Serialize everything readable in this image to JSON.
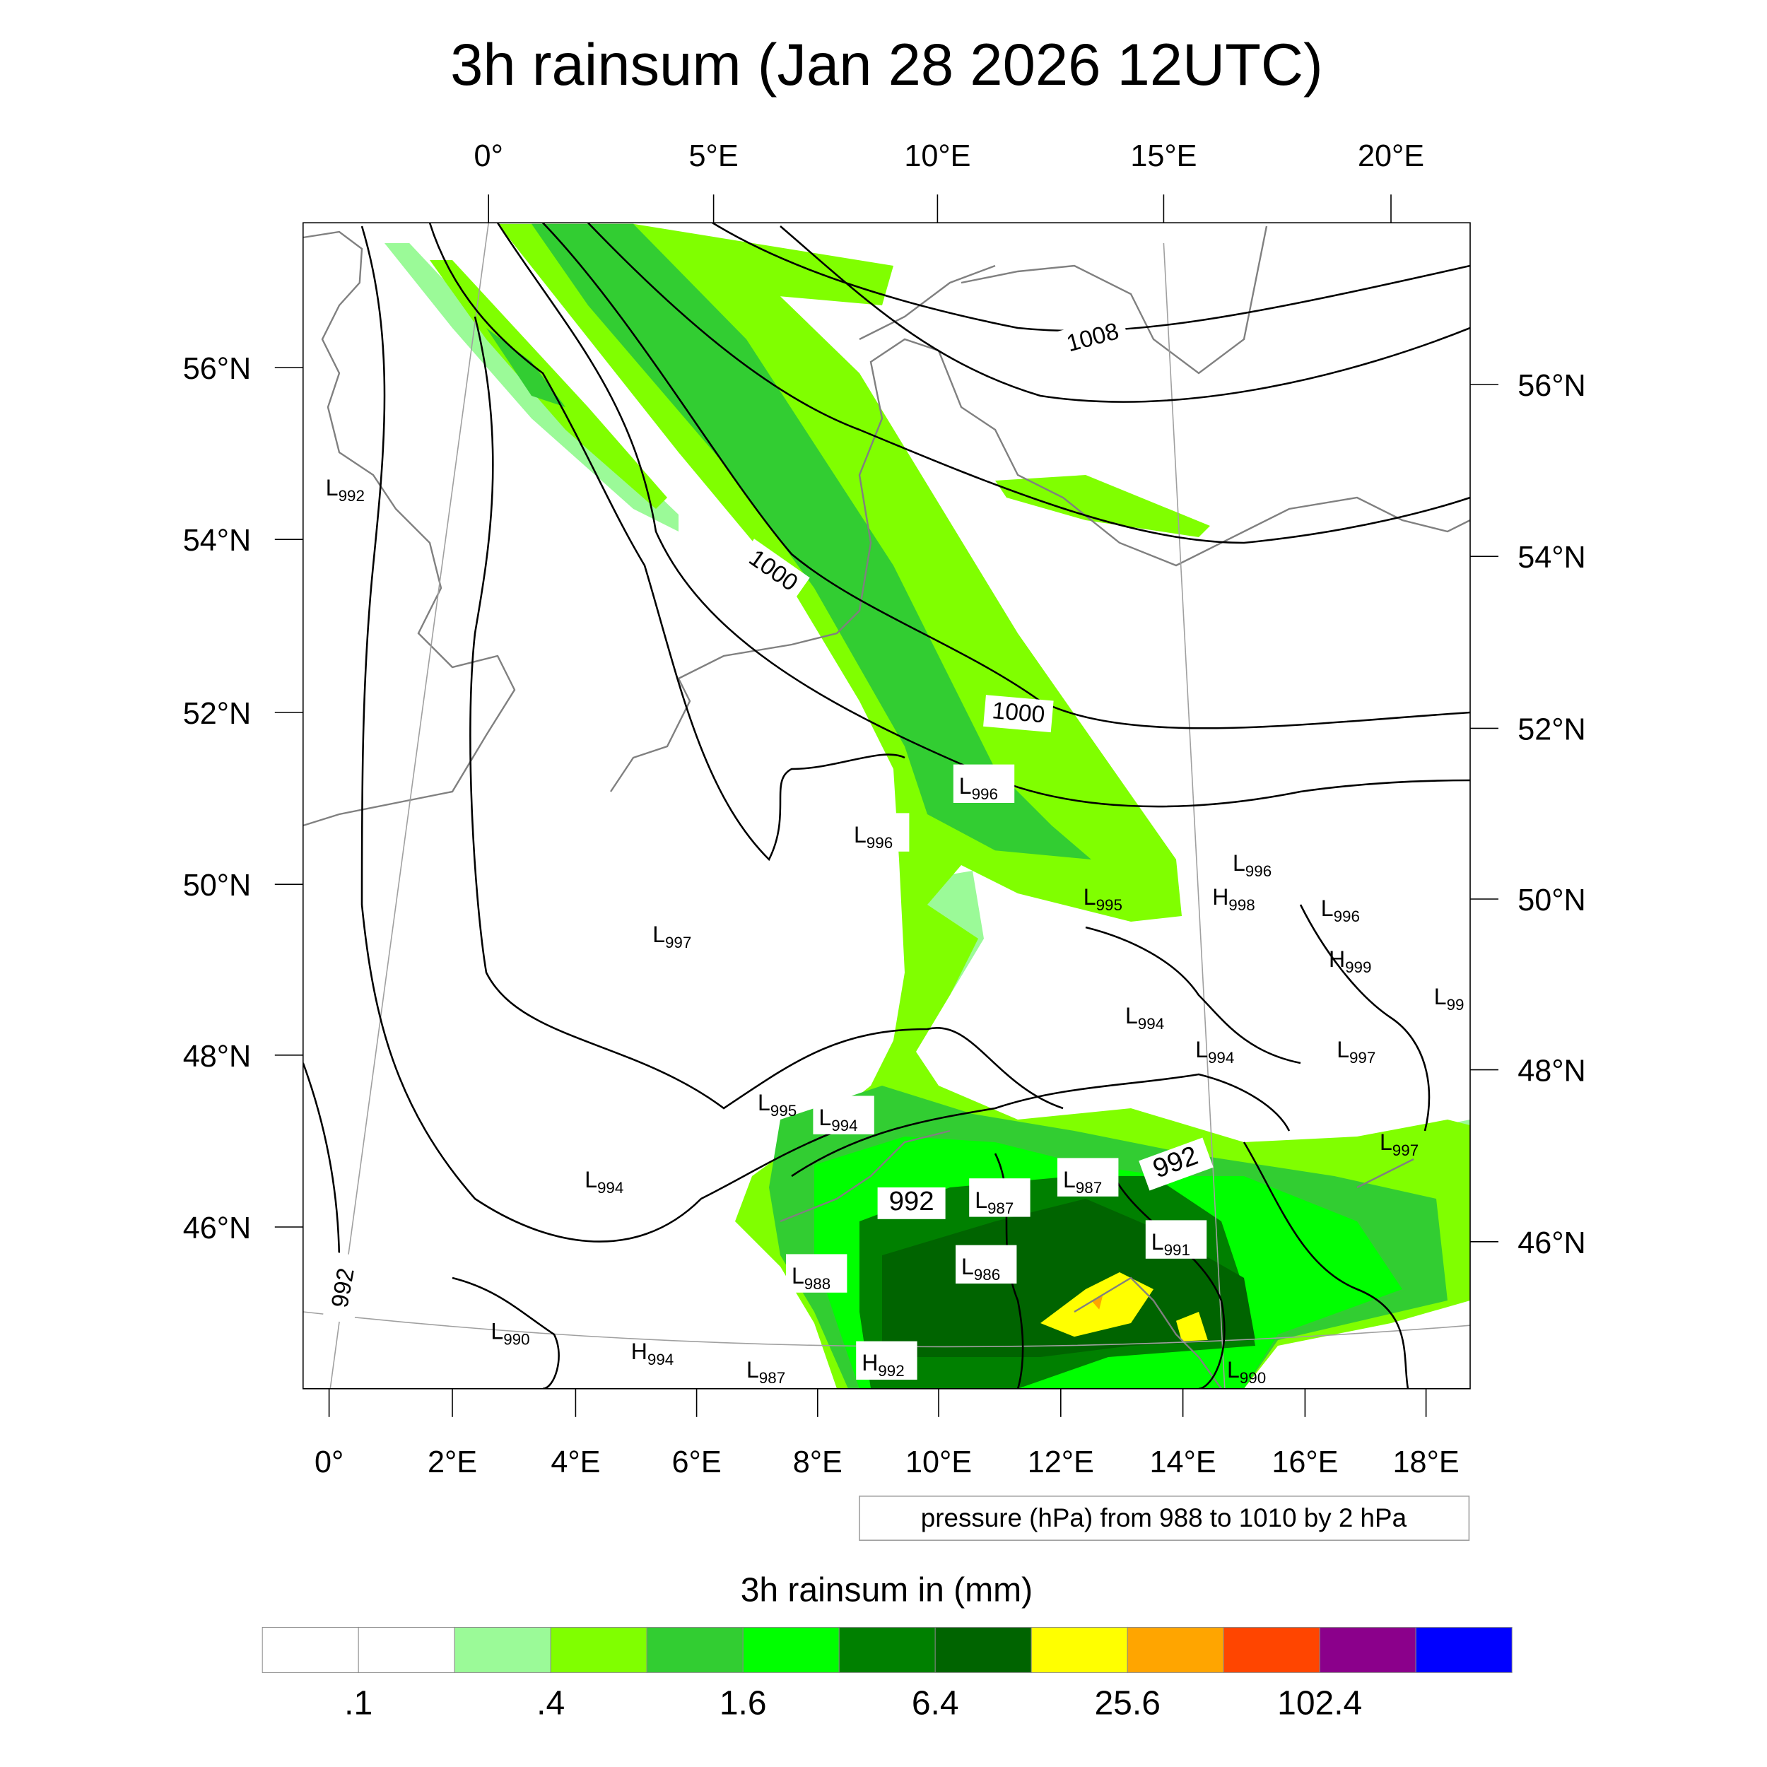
{
  "title": "3h rainsum (Jan 28 2026 12UTC)",
  "top_lon_labels": [
    "0°",
    "5°E",
    "10°E",
    "15°E",
    "20°E"
  ],
  "bottom_lon_labels": [
    "0°",
    "2°E",
    "4°E",
    "6°E",
    "8°E",
    "10°E",
    "12°E",
    "14°E",
    "16°E",
    "18°E"
  ],
  "left_lat_labels": [
    "56°N",
    "54°N",
    "52°N",
    "50°N",
    "48°N",
    "46°N"
  ],
  "right_lat_labels": [
    "56°N",
    "54°N",
    "52°N",
    "50°N",
    "48°N",
    "46°N"
  ],
  "contour_info": "pressure (hPa) from 988 to 1010 by 2 hPa",
  "colorbar": {
    "title": "3h rainsum in (mm)",
    "colors": [
      "#ffffff",
      "#ffffff",
      "#9bfa98",
      "#80ff00",
      "#32cd32",
      "#00ff00",
      "#008000",
      "#006400",
      "#ffff00",
      "#ffa500",
      "#ff4500",
      "#8b008b",
      "#0000ff"
    ],
    "labels": [
      ".1",
      ".4",
      "1.6",
      "6.4",
      "25.6",
      "102.4"
    ]
  },
  "pressure_labels": [
    {
      "t": "L",
      "v": "992"
    },
    {
      "t": "L",
      "v": "997"
    },
    {
      "t": "L",
      "v": "994"
    },
    {
      "t": "L",
      "v": "990"
    },
    {
      "t": "H",
      "v": "994"
    },
    {
      "t": "L",
      "v": "987"
    },
    {
      "t": "H",
      "v": "992"
    },
    {
      "t": "L",
      "v": "988"
    },
    {
      "t": "L",
      "v": "995"
    },
    {
      "t": "L",
      "v": "994"
    },
    {
      "t": "L",
      "v": "996"
    },
    {
      "t": "L",
      "v": "996"
    },
    {
      "t": "L",
      "v": "987"
    },
    {
      "t": "L",
      "v": "986"
    },
    {
      "t": "L",
      "v": "987"
    },
    {
      "t": "L",
      "v": "991"
    },
    {
      "t": "L",
      "v": "990"
    },
    {
      "t": "L",
      "v": "995"
    },
    {
      "t": "L",
      "v": "996"
    },
    {
      "t": "H",
      "v": "998"
    },
    {
      "t": "L",
      "v": "996"
    },
    {
      "t": "H",
      "v": "999"
    },
    {
      "t": "L",
      "v": "99"
    },
    {
      "t": "L",
      "v": "994"
    },
    {
      "t": "L",
      "v": "994"
    },
    {
      "t": "L",
      "v": "997"
    },
    {
      "t": "L",
      "v": "997"
    }
  ],
  "contour_labels": [
    "1008",
    "1000",
    "1000",
    "992",
    "992",
    "992"
  ]
}
